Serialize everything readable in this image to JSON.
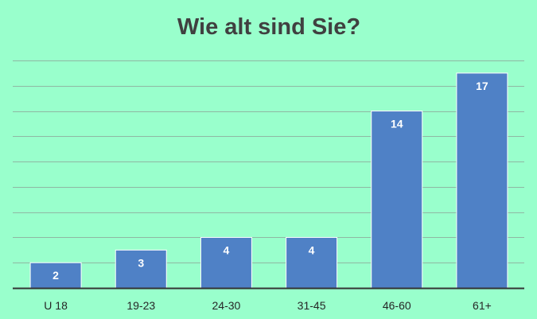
{
  "chart_data": {
    "type": "bar",
    "title": "Wie alt sind Sie?",
    "xlabel": "",
    "ylabel": "",
    "categories": [
      "U 18",
      "19-23",
      "24-30",
      "31-45",
      "46-60",
      "61+"
    ],
    "values": [
      2,
      3,
      4,
      4,
      14,
      17
    ],
    "data_labels": [
      "2",
      "3",
      "4",
      "4",
      "14",
      "17"
    ],
    "ylim": [
      0,
      18
    ],
    "grid": true,
    "legend": "none",
    "colors": {
      "background": "#99ffcc",
      "bar": "#4f81c6",
      "gridline": "#8fb8a3",
      "axis": "#333333",
      "title": "#404040"
    }
  }
}
